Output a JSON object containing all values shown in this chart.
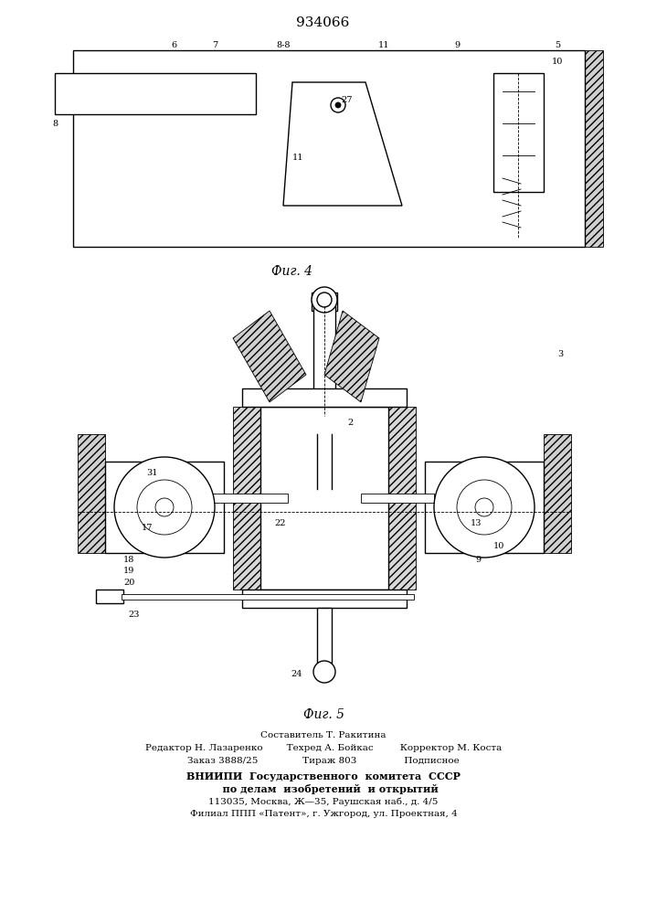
{
  "title": "934066",
  "fig4_label": "Фиг. 4",
  "fig5_label": "Фиг. 5",
  "bg_color": "#ffffff",
  "line_color": "#000000",
  "hatch_color": "#000000",
  "footer_lines": [
    "Составитель Т. Ракитина",
    "Редактор Н. Лазаренко        Техред А. Бойкас         Корректор М. Коста",
    "Заказ 3888/25               Тираж 803                Подписное",
    "ВНИИПИ  Государственного  комитета  СССР",
    "    по делам  изобретений  и открытий",
    "113035, Москва, Ж—35, Раушская наб., д. 4/5",
    "Филиал ППП «Патент», г. Ужгород, ул. Проектная, 4"
  ]
}
